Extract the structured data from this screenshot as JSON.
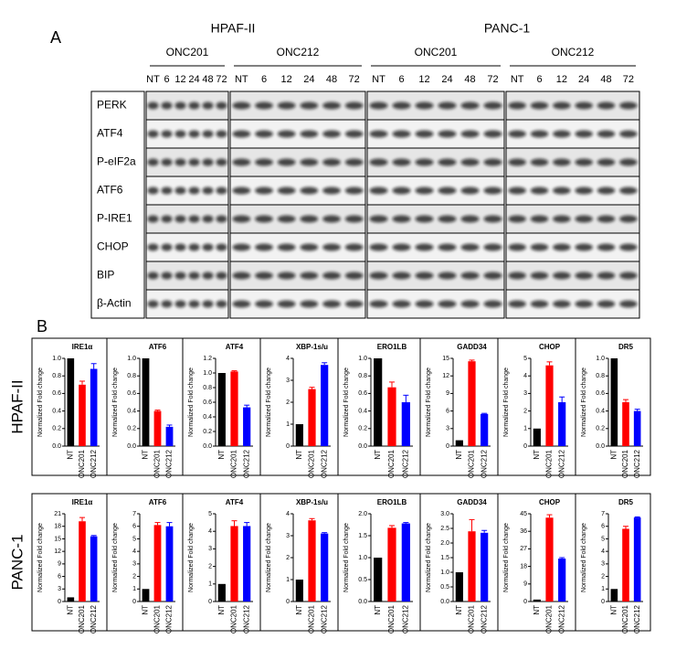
{
  "panel_a": {
    "label": "A",
    "cell_lines": [
      "HPAF-II",
      "PANC-1"
    ],
    "treatments": [
      "ONC201",
      "ONC212"
    ],
    "timepoints": [
      "NT",
      "6",
      "12",
      "24",
      "48",
      "72"
    ],
    "proteins": [
      "PERK",
      "ATF4",
      "P-eIF2a",
      "ATF6",
      "P-IRE1",
      "CHOP",
      "BIP",
      "β-Actin"
    ]
  },
  "panel_b": {
    "label": "B",
    "row_labels": [
      "HPAF-II",
      "PANC-1"
    ]
  },
  "chart_data": [
    {
      "type": "bar",
      "title": "IRE1α",
      "ylabel": "Normalized Fold change",
      "categories": [
        "NT",
        "ONC201",
        "ONC212"
      ],
      "colors": [
        "#000000",
        "#ff0000",
        "#0000ff"
      ],
      "values": [
        1.0,
        0.7,
        0.88
      ],
      "errors": [
        0,
        0.04,
        0.06
      ],
      "ylim": [
        0,
        1.0
      ],
      "yticks": [
        {
          "value": 0,
          "label": "0.0"
        },
        0.2,
        0.4,
        0.6,
        0.8,
        {
          "value": 1,
          "label": "1.0"
        }
      ]
    },
    {
      "type": "bar",
      "title": "ATF6",
      "ylabel": "Normalized Fold change",
      "categories": [
        "NT",
        "ONC201",
        "ONC212"
      ],
      "colors": [
        "#000000",
        "#ff0000",
        "#0000ff"
      ],
      "values": [
        1.0,
        0.4,
        0.22
      ],
      "errors": [
        0,
        0.01,
        0.02
      ],
      "ylim": [
        0,
        1.0
      ],
      "yticks": [
        {
          "value": 0,
          "label": "0.0"
        },
        0.2,
        0.4,
        0.6,
        0.8,
        {
          "value": 1,
          "label": "1.0"
        }
      ]
    },
    {
      "type": "bar",
      "title": "ATF4",
      "ylabel": "Normalized Fold change",
      "categories": [
        "NT",
        "ONC201",
        "ONC212"
      ],
      "colors": [
        "#000000",
        "#ff0000",
        "#0000ff"
      ],
      "values": [
        1.0,
        1.02,
        0.53
      ],
      "errors": [
        0,
        0.01,
        0.03
      ],
      "ylim": [
        0,
        1.2
      ],
      "yticks": [
        {
          "value": 0,
          "label": "0.0"
        },
        0.2,
        0.4,
        0.6,
        0.8,
        {
          "value": 1,
          "label": "1.0"
        },
        1.2
      ]
    },
    {
      "type": "bar",
      "title": "XBP-1s/u",
      "ylabel": "Normalized Fold change",
      "categories": [
        "NT",
        "ONC201",
        "ONC212"
      ],
      "colors": [
        "#000000",
        "#ff0000",
        "#0000ff"
      ],
      "values": [
        1.0,
        2.6,
        3.7
      ],
      "errors": [
        0,
        0.08,
        0.1
      ],
      "ylim": [
        0,
        4
      ],
      "yticks": [
        0,
        1,
        2,
        3,
        4
      ]
    },
    {
      "type": "bar",
      "title": "ERO1LB",
      "ylabel": "Normalized Fold change",
      "categories": [
        "NT",
        "ONC201",
        "ONC212"
      ],
      "colors": [
        "#000000",
        "#ff0000",
        "#0000ff"
      ],
      "values": [
        1.0,
        0.67,
        0.5
      ],
      "errors": [
        0,
        0.06,
        0.08
      ],
      "ylim": [
        0,
        1.0
      ],
      "yticks": [
        {
          "value": 0,
          "label": "0.0"
        },
        0.2,
        0.4,
        0.6,
        0.8,
        {
          "value": 1,
          "label": "1.0"
        }
      ]
    },
    {
      "type": "bar",
      "title": "GADD34",
      "ylabel": "Normalized Fold change",
      "categories": [
        "NT",
        "ONC201",
        "ONC212"
      ],
      "colors": [
        "#000000",
        "#ff0000",
        "#0000ff"
      ],
      "values": [
        1,
        14.5,
        5.5
      ],
      "errors": [
        0,
        0.2,
        0.1
      ],
      "ylim": [
        0,
        15
      ],
      "yticks": [
        0,
        3,
        6,
        9,
        12,
        15
      ]
    },
    {
      "type": "bar",
      "title": "CHOP",
      "ylabel": "Normalized Fold change",
      "categories": [
        "NT",
        "ONC201",
        "ONC212"
      ],
      "colors": [
        "#000000",
        "#ff0000",
        "#0000ff"
      ],
      "values": [
        1,
        4.6,
        2.5
      ],
      "errors": [
        0,
        0.2,
        0.3
      ],
      "ylim": [
        0,
        5
      ],
      "yticks": [
        0,
        1,
        2,
        3,
        4,
        5
      ]
    },
    {
      "type": "bar",
      "title": "DR5",
      "ylabel": "Normalized Fold change",
      "categories": [
        "NT",
        "ONC201",
        "ONC212"
      ],
      "colors": [
        "#000000",
        "#ff0000",
        "#0000ff"
      ],
      "values": [
        1.0,
        0.5,
        0.4
      ],
      "errors": [
        0,
        0.03,
        0.02
      ],
      "ylim": [
        0,
        1.0
      ],
      "yticks": [
        {
          "value": 0,
          "label": "0.0"
        },
        0.2,
        0.4,
        0.6,
        0.8,
        {
          "value": 1,
          "label": "1.0"
        }
      ]
    },
    {
      "type": "bar",
      "title": "IRE1α",
      "ylabel": "Normalized Fold change",
      "categories": [
        "NT",
        "ONC201",
        "ONC212"
      ],
      "colors": [
        "#000000",
        "#ff0000",
        "#0000ff"
      ],
      "values": [
        1,
        19.2,
        15.6
      ],
      "errors": [
        0,
        0.9,
        0.2
      ],
      "ylim": [
        0,
        21
      ],
      "yticks": [
        0,
        3,
        6,
        9,
        12,
        15,
        18,
        21
      ]
    },
    {
      "type": "bar",
      "title": "ATF6",
      "ylabel": "Normalized Fold change",
      "categories": [
        "NT",
        "ONC201",
        "ONC212"
      ],
      "colors": [
        "#000000",
        "#ff0000",
        "#0000ff"
      ],
      "values": [
        1,
        6.1,
        6.0
      ],
      "errors": [
        0,
        0.2,
        0.3
      ],
      "ylim": [
        0,
        7
      ],
      "yticks": [
        0,
        1,
        2,
        3,
        4,
        5,
        6,
        7
      ]
    },
    {
      "type": "bar",
      "title": "ATF4",
      "ylabel": "Normalized Fold change",
      "categories": [
        "NT",
        "ONC201",
        "ONC212"
      ],
      "colors": [
        "#000000",
        "#ff0000",
        "#0000ff"
      ],
      "values": [
        1,
        4.3,
        4.3
      ],
      "errors": [
        0,
        0.3,
        0.2
      ],
      "ylim": [
        0,
        5
      ],
      "yticks": [
        0,
        1,
        2,
        3,
        4,
        5
      ]
    },
    {
      "type": "bar",
      "title": "XBP-1s/u",
      "ylabel": "Normalized Fold change",
      "categories": [
        "NT",
        "ONC201",
        "ONC212"
      ],
      "colors": [
        "#000000",
        "#ff0000",
        "#0000ff"
      ],
      "values": [
        1,
        3.7,
        3.1
      ],
      "errors": [
        0,
        0.08,
        0.04
      ],
      "ylim": [
        0,
        4
      ],
      "yticks": [
        0,
        1,
        2,
        3,
        4
      ]
    },
    {
      "type": "bar",
      "title": "ERO1LB",
      "ylabel": "Normalized Fold change",
      "categories": [
        "NT",
        "ONC201",
        "ONC212"
      ],
      "colors": [
        "#000000",
        "#ff0000",
        "#0000ff"
      ],
      "values": [
        1.0,
        1.68,
        1.78
      ],
      "errors": [
        0,
        0.05,
        0.02
      ],
      "ylim": [
        0,
        2.0
      ],
      "yticks": [
        {
          "value": 0,
          "label": "0.0"
        },
        0.5,
        {
          "value": 1,
          "label": "1.0"
        },
        1.5,
        {
          "value": 2,
          "label": "2.0"
        }
      ]
    },
    {
      "type": "bar",
      "title": "GADD34",
      "ylabel": "Normalized Fold change",
      "categories": [
        "NT",
        "ONC201",
        "ONC212"
      ],
      "colors": [
        "#000000",
        "#ff0000",
        "#0000ff"
      ],
      "values": [
        1.0,
        2.4,
        2.35
      ],
      "errors": [
        0,
        0.4,
        0.08
      ],
      "ylim": [
        0,
        3.0
      ],
      "yticks": [
        {
          "value": 0,
          "label": "0.0"
        },
        0.5,
        {
          "value": 1,
          "label": "1.0"
        },
        1.5,
        {
          "value": 2,
          "label": "2.0"
        },
        2.5,
        {
          "value": 3,
          "label": "3.0"
        }
      ]
    },
    {
      "type": "bar",
      "title": "CHOP",
      "ylabel": "Normalized Fold change",
      "categories": [
        "NT",
        "ONC201",
        "ONC212"
      ],
      "colors": [
        "#000000",
        "#ff0000",
        "#0000ff"
      ],
      "values": [
        1,
        43,
        22
      ],
      "errors": [
        0,
        1.5,
        0.5
      ],
      "ylim": [
        0,
        45
      ],
      "yticks": [
        0,
        9,
        18,
        27,
        36,
        45
      ]
    },
    {
      "type": "bar",
      "title": "DR5",
      "ylabel": "Normalized Fold change",
      "categories": [
        "NT",
        "ONC201",
        "ONC212"
      ],
      "colors": [
        "#000000",
        "#ff0000",
        "#0000ff"
      ],
      "values": [
        1,
        5.8,
        6.7
      ],
      "errors": [
        0,
        0.2,
        0.05
      ],
      "ylim": [
        0,
        7
      ],
      "yticks": [
        0,
        1,
        2,
        3,
        4,
        5,
        6,
        7
      ]
    }
  ]
}
